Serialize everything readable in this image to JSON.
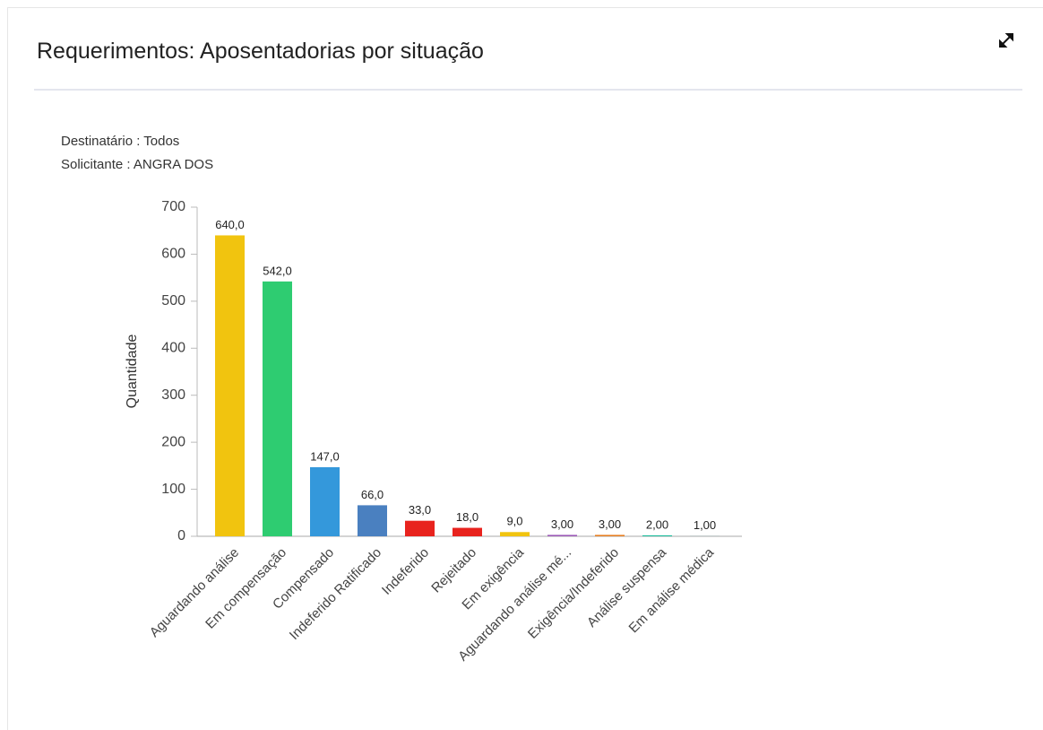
{
  "chart_data": {
    "type": "bar",
    "title": "Requerimentos: Aposentadorias por situação",
    "subtitle": [
      "Destinatário : Todos",
      "Solicitante : ANGRA DOS"
    ],
    "y_label": "Quantidade",
    "categories": [
      "Aguardando análise",
      "Em compensação",
      "Compensado",
      "Indeferido Ratificado",
      "Indeferido",
      "Rejeitado",
      "Em exigência",
      "Aguardando análise mé...",
      "Exigência/Indeferido",
      "Análise suspensa",
      "Em análise médica"
    ],
    "values": [
      640,
      542,
      147,
      66,
      33,
      18,
      9,
      3,
      3,
      2,
      1
    ],
    "value_labels": [
      "640,0",
      "542,0",
      "147,0",
      "66,0",
      "33,0",
      "18,0",
      "9,0",
      "3,00",
      "3,00",
      "2,00",
      "1,00"
    ],
    "colors": [
      "#f1c40f",
      "#2ecc71",
      "#3498db",
      "#4a80c0",
      "#e8231e",
      "#e8231e",
      "#f1c40f",
      "#9b59b6",
      "#e67e22",
      "#1abc9c",
      "#95a5a6"
    ],
    "ylim": [
      0,
      700
    ],
    "yticks": [
      0,
      100,
      200,
      300,
      400,
      500,
      600,
      700
    ],
    "grid": false
  }
}
